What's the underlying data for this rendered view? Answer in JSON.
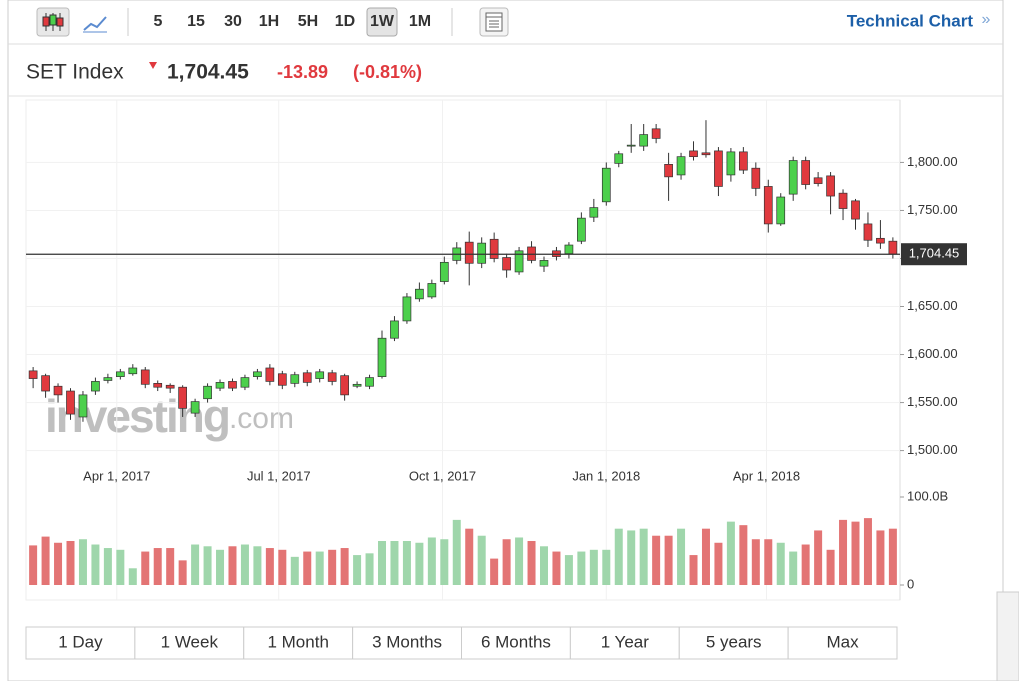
{
  "toolbar": {
    "intervals": [
      "5",
      "15",
      "30",
      "1H",
      "5H",
      "1D",
      "1W",
      "1M"
    ],
    "active": "1W",
    "link": "Technical Chart",
    "link_arrow": "»"
  },
  "header": {
    "name": "SET Index",
    "last": "1,704.45",
    "change": "-13.89",
    "change_pct": "(-0.81%)"
  },
  "chart_data": {
    "type": "candlestick",
    "x": [
      "2017-02-13",
      "2017-02-20",
      "2017-02-27",
      "2017-03-06",
      "2017-03-13",
      "2017-03-20",
      "2017-03-27",
      "2017-04-03",
      "2017-04-10",
      "2017-04-17",
      "2017-04-24",
      "2017-05-01",
      "2017-05-08",
      "2017-05-15",
      "2017-05-22",
      "2017-05-29",
      "2017-06-05",
      "2017-06-12",
      "2017-06-19",
      "2017-06-26",
      "2017-07-03",
      "2017-07-10",
      "2017-07-17",
      "2017-07-24",
      "2017-07-31",
      "2017-08-07",
      "2017-08-14",
      "2017-08-21",
      "2017-08-28",
      "2017-09-04",
      "2017-09-11",
      "2017-09-18",
      "2017-09-25",
      "2017-10-02",
      "2017-10-09",
      "2017-10-16",
      "2017-10-23",
      "2017-10-30",
      "2017-11-06",
      "2017-11-13",
      "2017-11-20",
      "2017-11-27",
      "2017-12-04",
      "2017-12-11",
      "2017-12-18",
      "2017-12-25",
      "2018-01-01",
      "2018-01-08",
      "2018-01-15",
      "2018-01-22",
      "2018-01-29",
      "2018-02-05",
      "2018-02-12",
      "2018-02-19",
      "2018-02-26",
      "2018-03-05",
      "2018-03-12",
      "2018-03-19",
      "2018-03-26",
      "2018-04-02",
      "2018-04-09",
      "2018-04-16",
      "2018-04-23",
      "2018-04-30",
      "2018-05-07",
      "2018-05-14",
      "2018-05-21",
      "2018-05-28",
      "2018-06-04",
      "2018-06-11"
    ],
    "open": [
      1583,
      1578,
      1567,
      1562,
      1535,
      1562,
      1573,
      1577,
      1580,
      1584,
      1570,
      1568,
      1566,
      1539,
      1554,
      1565,
      1572,
      1566,
      1577,
      1586,
      1580,
      1570,
      1581,
      1575,
      1581,
      1578,
      1567,
      1567,
      1577,
      1617,
      1635,
      1658,
      1660,
      1676,
      1698,
      1717,
      1695,
      1720,
      1701,
      1686,
      1712,
      1692,
      1708,
      1705,
      1718,
      1743,
      1759,
      1799,
      1817,
      1817,
      1835,
      1798,
      1787,
      1812,
      1810,
      1812,
      1787,
      1811,
      1794,
      1775,
      1736,
      1767,
      1802,
      1784,
      1786,
      1768,
      1760,
      1736,
      1721,
      1718
    ],
    "high": [
      1587,
      1580,
      1570,
      1565,
      1562,
      1576,
      1580,
      1585,
      1590,
      1587,
      1573,
      1570,
      1568,
      1554,
      1570,
      1574,
      1575,
      1579,
      1585,
      1590,
      1583,
      1582,
      1584,
      1585,
      1584,
      1580,
      1572,
      1579,
      1625,
      1640,
      1664,
      1675,
      1678,
      1702,
      1717,
      1728,
      1722,
      1727,
      1705,
      1712,
      1718,
      1702,
      1712,
      1717,
      1748,
      1762,
      1800,
      1812,
      1840,
      1840,
      1840,
      1810,
      1810,
      1822,
      1844,
      1816,
      1815,
      1816,
      1800,
      1782,
      1768,
      1806,
      1806,
      1790,
      1790,
      1772,
      1762,
      1748,
      1740,
      1722
    ],
    "low": [
      1565,
      1555,
      1550,
      1532,
      1530,
      1558,
      1570,
      1574,
      1578,
      1565,
      1562,
      1560,
      1535,
      1535,
      1550,
      1562,
      1562,
      1563,
      1574,
      1568,
      1564,
      1566,
      1567,
      1571,
      1568,
      1552,
      1565,
      1564,
      1575,
      1614,
      1632,
      1655,
      1658,
      1673,
      1694,
      1672,
      1690,
      1696,
      1680,
      1683,
      1695,
      1686,
      1698,
      1700,
      1715,
      1738,
      1755,
      1795,
      1810,
      1812,
      1820,
      1760,
      1782,
      1802,
      1805,
      1765,
      1780,
      1788,
      1765,
      1727,
      1734,
      1760,
      1772,
      1775,
      1746,
      1740,
      1730,
      1712,
      1710,
      1700
    ],
    "close": [
      1575,
      1562,
      1558,
      1538,
      1558,
      1572,
      1576,
      1582,
      1586,
      1569,
      1566,
      1565,
      1544,
      1551,
      1567,
      1571,
      1565,
      1576,
      1582,
      1572,
      1568,
      1579,
      1571,
      1582,
      1572,
      1558,
      1569,
      1576,
      1617,
      1635,
      1660,
      1668,
      1674,
      1696,
      1711,
      1695,
      1716,
      1700,
      1688,
      1708,
      1698,
      1698,
      1702,
      1714,
      1742,
      1753,
      1794,
      1809,
      1818,
      1829,
      1825,
      1785,
      1806,
      1806,
      1808,
      1775,
      1811,
      1792,
      1773,
      1736,
      1764,
      1802,
      1777,
      1778,
      1765,
      1752,
      1741,
      1719,
      1716,
      1704.45
    ],
    "up_color": "#4cd04c",
    "down_color": "#e0393e",
    "xlim": [
      "2017-02-09",
      "2018-06-15"
    ],
    "xticks": [
      {
        "value": "2017-04-01",
        "label": "Apr 1, 2017"
      },
      {
        "value": "2017-07-01",
        "label": "Jul 1, 2017"
      },
      {
        "value": "2017-10-01",
        "label": "Oct 1, 2017"
      },
      {
        "value": "2018-01-01",
        "label": "Jan 1, 2018"
      },
      {
        "value": "2018-04-01",
        "label": "Apr 1, 2018"
      }
    ],
    "ylim": [
      1485,
      1865
    ],
    "yticks": [
      {
        "value": 1500,
        "label": "1,500.00"
      },
      {
        "value": 1550,
        "label": "1,550.00"
      },
      {
        "value": 1600,
        "label": "1,600.00"
      },
      {
        "value": 1650,
        "label": "1,650.00"
      },
      {
        "value": 1700,
        "label": "1,700.00"
      },
      {
        "value": 1750,
        "label": "1,750.00"
      },
      {
        "value": 1800,
        "label": "1,800.00"
      }
    ],
    "hidden_yticks": [
      1700
    ],
    "grid": true,
    "last_price": {
      "value": 1704.45,
      "label": "1,704.45"
    },
    "volume": {
      "values": [
        45,
        55,
        48,
        50,
        52,
        46,
        42,
        40,
        19,
        38,
        42,
        42,
        28,
        46,
        44,
        40,
        44,
        46,
        44,
        42,
        40,
        32,
        38,
        38,
        40,
        42,
        34,
        36,
        50,
        50,
        50,
        48,
        54,
        52,
        74,
        64,
        56,
        30,
        52,
        54,
        50,
        44,
        38,
        34,
        38,
        40,
        40,
        64,
        62,
        64,
        56,
        56,
        64,
        34,
        64,
        48,
        72,
        68,
        52,
        52,
        48,
        38,
        46,
        62,
        40,
        74,
        72,
        76,
        62,
        64
      ],
      "up_color": "#9fd6ab",
      "down_color": "#e37474",
      "ylim": [
        0,
        100
      ],
      "yticks": [
        0,
        {
          "value": 100,
          "label": "100.0B"
        }
      ]
    },
    "watermark": [
      "investing",
      ".com"
    ]
  },
  "ranges": [
    "1 Day",
    "1 Week",
    "1 Month",
    "3 Months",
    "6 Months",
    "1 Year",
    "5 years",
    "Max"
  ]
}
